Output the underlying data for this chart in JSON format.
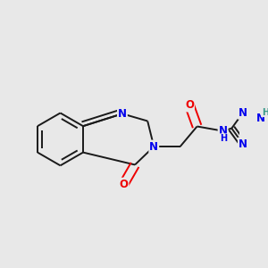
{
  "bg_color": "#e8e8e8",
  "bond_color": "#1a1a1a",
  "bond_width": 1.4,
  "atom_colors": {
    "N": "#0000ee",
    "O": "#ee0000",
    "H": "#3a9a8a",
    "C": "#1a1a1a"
  },
  "font_size_atom": 8.5,
  "font_size_H": 7.0,
  "scale": 1.0
}
